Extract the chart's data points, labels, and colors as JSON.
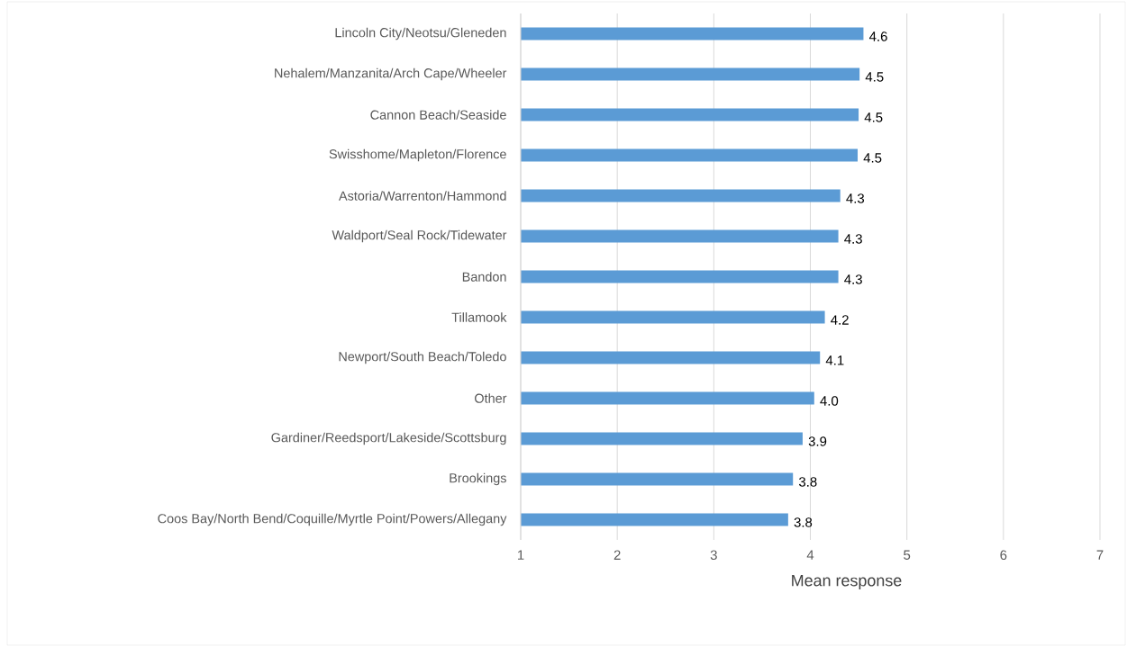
{
  "chart_data": {
    "type": "bar",
    "orientation": "horizontal",
    "categories": [
      "Lincoln City/Neotsu/Gleneden",
      "Nehalem/Manzanita/Arch Cape/Wheeler",
      "Cannon Beach/Seaside",
      "Swisshome/Mapleton/Florence",
      "Astoria/Warrenton/Hammond",
      "Waldport/Seal Rock/Tidewater",
      "Bandon",
      "Tillamook",
      "Newport/South Beach/Toledo",
      "Other",
      "Gardiner/Reedsport/Lakeside/Scottsburg",
      "Brookings",
      "Coos Bay/North Bend/Coquille/Myrtle Point/Powers/Allegany"
    ],
    "values": [
      4.55,
      4.51,
      4.5,
      4.49,
      4.31,
      4.29,
      4.29,
      4.15,
      4.1,
      4.04,
      3.92,
      3.82,
      3.77
    ],
    "value_labels": [
      "4.6",
      "4.5",
      "4.5",
      "4.5",
      "4.3",
      "4.3",
      "4.3",
      "4.2",
      "4.1",
      "4.0",
      "3.9",
      "3.8",
      "3.8"
    ],
    "color": "#5b9bd5",
    "xlim": [
      1,
      7
    ],
    "xticks": [
      1,
      2,
      3,
      4,
      5,
      6,
      7
    ],
    "xlabel": "Mean response",
    "grid": "x"
  }
}
